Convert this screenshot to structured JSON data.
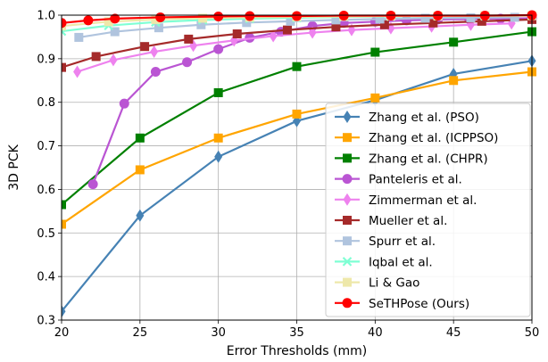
{
  "chart_data": {
    "type": "line",
    "title": "",
    "xlabel": "Error Thresholds (mm)",
    "ylabel": "3D PCK",
    "xlim": [
      20,
      50
    ],
    "ylim": [
      0.3,
      1.0
    ],
    "xticks": [
      "20",
      "25",
      "30",
      "35",
      "40",
      "45",
      "50"
    ],
    "yticks": [
      "0.3",
      "0.4",
      "0.5",
      "0.6",
      "0.7",
      "0.8",
      "0.9",
      "1.0"
    ],
    "grid": true,
    "legend_position": "lower-right",
    "series": [
      {
        "name": " Zhang et al. (PSO)",
        "color": "#4682b4",
        "marker": "thin_diamond",
        "x": [
          20,
          25,
          30,
          35,
          40,
          45,
          50
        ],
        "y": [
          0.32,
          0.54,
          0.675,
          0.757,
          0.805,
          0.865,
          0.895
        ]
      },
      {
        "name": "Zhang et al. (ICPPSO)",
        "color": "#ffa500",
        "marker": "square",
        "x": [
          20,
          25,
          30,
          35,
          40,
          45,
          50
        ],
        "y": [
          0.52,
          0.645,
          0.718,
          0.773,
          0.81,
          0.85,
          0.87
        ]
      },
      {
        "name": "Zhang et al. (CHPR)",
        "color": "#008000",
        "marker": "square",
        "x": [
          20,
          25,
          30,
          35,
          40,
          45,
          50
        ],
        "y": [
          0.565,
          0.718,
          0.822,
          0.882,
          0.915,
          0.938,
          0.962
        ]
      },
      {
        "name": "Panteleris et al.",
        "color": "#ba55d3",
        "marker": "circle",
        "x": [
          22,
          24,
          26,
          28,
          30,
          32,
          34,
          36,
          38,
          40,
          42,
          44,
          46,
          48,
          50
        ],
        "y": [
          0.612,
          0.797,
          0.87,
          0.892,
          0.922,
          0.948,
          0.962,
          0.975,
          0.982,
          0.985,
          0.988,
          0.99,
          0.991,
          0.992,
          0.993
        ]
      },
      {
        "name": " Zimmerman et al.",
        "color": "#ee82ee",
        "marker": "thin_diamond",
        "x": [
          21,
          23.3,
          25.9,
          28.4,
          31,
          33.5,
          36,
          38.5,
          41,
          43.6,
          46.1,
          48.7
        ],
        "y": [
          0.87,
          0.897,
          0.916,
          0.93,
          0.942,
          0.952,
          0.96,
          0.966,
          0.97,
          0.974,
          0.978,
          0.981
        ]
      },
      {
        "name": "Mueller et al.",
        "color": "#a52a2a",
        "marker": "square",
        "x": [
          20,
          22.2,
          25.3,
          28.1,
          31.2,
          34.4,
          37.5,
          40.6,
          43.7,
          46.8,
          50
        ],
        "y": [
          0.88,
          0.905,
          0.928,
          0.945,
          0.957,
          0.966,
          0.973,
          0.978,
          0.982,
          0.986,
          0.99
        ]
      },
      {
        "name": "Spurr et al.",
        "color": "#b0c4de",
        "marker": "square",
        "x": [
          21.1,
          23.4,
          26.2,
          28.9,
          31.8,
          34.6,
          37.5,
          40.3,
          43.2,
          46.1,
          48.9
        ],
        "y": [
          0.949,
          0.962,
          0.971,
          0.978,
          0.983,
          0.986,
          0.989,
          0.991,
          0.993,
          0.994,
          0.995
        ]
      },
      {
        "name": "Iqbal et al.",
        "color": "#7fffd4",
        "marker": "x",
        "x": [
          20,
          23,
          26,
          29,
          32,
          35,
          38,
          41,
          44,
          47,
          50
        ],
        "y": [
          0.963,
          0.976,
          0.984,
          0.989,
          0.992,
          0.994,
          0.996,
          0.997,
          0.998,
          0.998,
          0.999
        ]
      },
      {
        "name": "Li & Gao",
        "color": "#eee8aa",
        "marker": "square",
        "x": [
          20,
          23,
          26,
          29,
          32,
          35,
          38,
          41,
          44,
          47,
          50
        ],
        "y": [
          0.975,
          0.985,
          0.99,
          0.993,
          0.995,
          0.996,
          0.997,
          0.998,
          0.998,
          0.999,
          0.999
        ]
      },
      {
        "name": "SeTHPose (Ours)",
        "color": "#ff0000",
        "marker": "circle",
        "x": [
          20,
          21.7,
          23.4,
          26.3,
          30,
          32,
          35,
          38,
          41,
          44,
          47,
          50
        ],
        "y": [
          0.982,
          0.988,
          0.992,
          0.995,
          0.997,
          0.998,
          0.998,
          0.999,
          0.999,
          0.999,
          0.999,
          1.0
        ]
      }
    ]
  }
}
